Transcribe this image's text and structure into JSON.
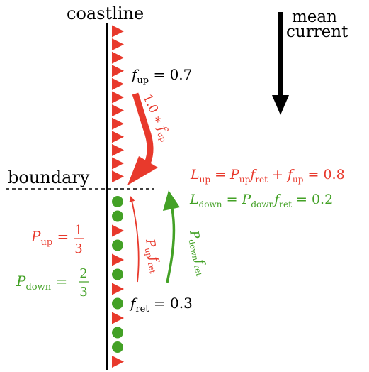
{
  "labels": {
    "coastline": "coastline",
    "mean_line1": "mean",
    "mean_line2": "current",
    "boundary": "boundary"
  },
  "params": {
    "f_up": "f",
    "f_up_sub": "up",
    "f_up_value": " = 0.7",
    "f_ret": "f",
    "f_ret_sub": "ret",
    "f_ret_value": " = 0.3"
  },
  "equations": {
    "L_up": {
      "L": "L",
      "L_sub": "up",
      "eq": " = ",
      "P": "P",
      "P_sub": "up",
      "f1": "f",
      "f1_sub": "ret",
      "plus": " + ",
      "f2": "f",
      "f2_sub": "up",
      "value": " = 0.8"
    },
    "L_down": {
      "L": "L",
      "L_sub": "down",
      "eq": " = ",
      "P": "P",
      "P_sub": "down",
      "f1": "f",
      "f1_sub": "ret",
      "value": " = 0.2"
    },
    "P_up": {
      "P": "P",
      "sub": "up",
      "eq": " = ",
      "num": "1",
      "den": "3"
    },
    "P_down": {
      "P": "P",
      "sub": "down",
      "eq": " = ",
      "num": "2",
      "den": "3"
    }
  },
  "arrow_labels": {
    "top": {
      "coef": "1.0 ∗ ",
      "f": "f",
      "sub": "up"
    },
    "up": {
      "P": "P",
      "P_sub": "up",
      "f": "f",
      "f_sub": "ret"
    },
    "down": {
      "P": "P",
      "P_sub": "down",
      "f": "f",
      "f_sub": "ret"
    }
  },
  "colors": {
    "red": "#e8392c",
    "green": "#43a126",
    "black": "#000000"
  },
  "markers": {
    "top_shapes": [
      "triangle",
      "triangle",
      "triangle",
      "triangle",
      "triangle",
      "triangle",
      "triangle",
      "triangle",
      "triangle",
      "triangle",
      "triangle",
      "triangle"
    ],
    "bottom_shapes": [
      "circle",
      "circle",
      "triangle",
      "circle",
      "triangle",
      "circle",
      "triangle",
      "circle",
      "triangle",
      "circle",
      "circle",
      "triangle"
    ]
  }
}
